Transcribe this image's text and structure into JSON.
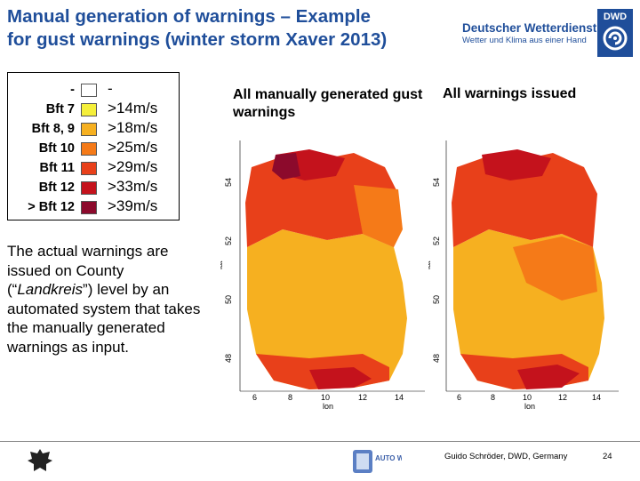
{
  "slide": {
    "title_line1": "Manual generation of warnings – Example",
    "title_line2": "for gust warnings (winter storm Xaver 2013)"
  },
  "logo": {
    "name": "Deutscher Wetterdienst",
    "tagline": "Wetter und Klima aus einer Hand",
    "abbr": "DWD"
  },
  "legend": {
    "rows": [
      {
        "bft": "-",
        "speed": "-",
        "color": "#ffffff"
      },
      {
        "bft": "Bft 7",
        "speed": ">14m/s",
        "color": "#f5ef3a"
      },
      {
        "bft": "Bft 8, 9",
        "speed": ">18m/s",
        "color": "#f6b020"
      },
      {
        "bft": "Bft 10",
        "speed": ">25m/s",
        "color": "#f57a18"
      },
      {
        "bft": "Bft 11",
        "speed": ">29m/s",
        "color": "#e8401a"
      },
      {
        "bft": "Bft 12",
        "speed": ">33m/s",
        "color": "#c4121c"
      },
      {
        "bft": "> Bft 12",
        "speed": ">39m/s",
        "color": "#8c0a2c"
      }
    ]
  },
  "maps": {
    "left_title": "All manually generated gust warnings",
    "right_title": "All warnings issued",
    "y_label": "lat",
    "x_label": "lon",
    "y_ticks": [
      "54",
      "52",
      "50",
      "48"
    ],
    "x_ticks": [
      "6",
      "8",
      "10",
      "12",
      "14"
    ]
  },
  "body": {
    "text_before": "The actual warnings are issued on County (“",
    "text_italic": "Landkreis",
    "text_after": "”) level by an automated system that takes the manually generated warnings as input."
  },
  "footer": {
    "author": "Guido Schröder, DWD, Germany",
    "page": "24",
    "project_logo": "AUTO WARN"
  }
}
